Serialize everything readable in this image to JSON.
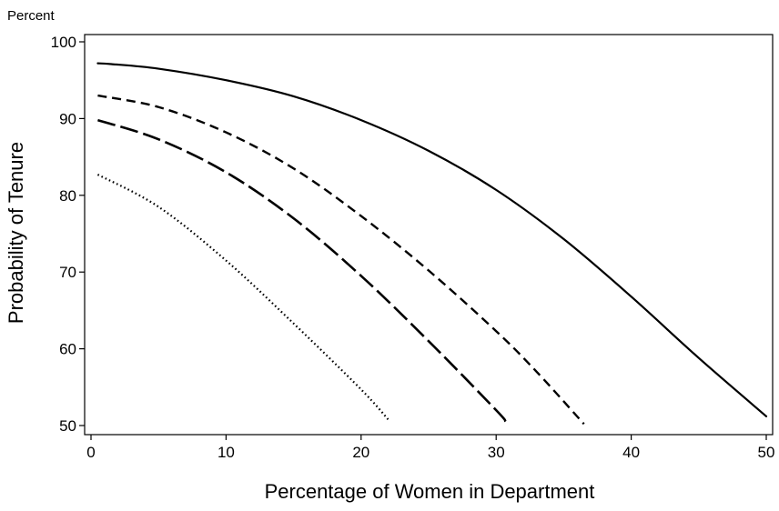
{
  "chart_data": {
    "type": "line",
    "title": "",
    "xlabel": "Percentage of Women in Department",
    "ylabel": "Probability of Tenure",
    "y_unit_label": "Percent",
    "xlim": [
      0,
      50
    ],
    "ylim": [
      50,
      100
    ],
    "x_ticks": [
      0,
      10,
      20,
      30,
      40,
      50
    ],
    "y_ticks": [
      50,
      60,
      70,
      80,
      90,
      100
    ],
    "x_tick_labels": [
      "0",
      "10",
      "20",
      "30",
      "40",
      "50"
    ],
    "y_tick_labels": [
      "50",
      "60",
      "70",
      "80",
      "90",
      "100"
    ],
    "grid": false,
    "legend": "none",
    "series": [
      {
        "line_style": "solid",
        "x": [
          0.5,
          1.5,
          5,
          10,
          15,
          20,
          25,
          30,
          35,
          40,
          45,
          50
        ],
        "values": [
          97.2,
          97.1,
          96.5,
          95.0,
          92.9,
          89.8,
          85.8,
          80.7,
          74.3,
          66.8,
          58.8,
          51.2
        ]
      },
      {
        "line_style": "dashed",
        "x": [
          0.5,
          5,
          10,
          15,
          20,
          25,
          30,
          33,
          36.5
        ],
        "values": [
          93.0,
          91.5,
          88.2,
          83.5,
          77.3,
          70.2,
          62.3,
          57.0,
          50.2
        ]
      },
      {
        "line_style": "long-dashed",
        "x": [
          0.5,
          5,
          10,
          15,
          20,
          25,
          30,
          30.7
        ],
        "values": [
          89.8,
          87.3,
          83.0,
          77.0,
          69.5,
          61.0,
          52.0,
          50.5
        ]
      },
      {
        "line_style": "dotted",
        "x": [
          0.5,
          5,
          10,
          15,
          20,
          22
        ],
        "values": [
          82.7,
          78.5,
          71.5,
          63.3,
          54.7,
          50.8
        ]
      }
    ]
  }
}
